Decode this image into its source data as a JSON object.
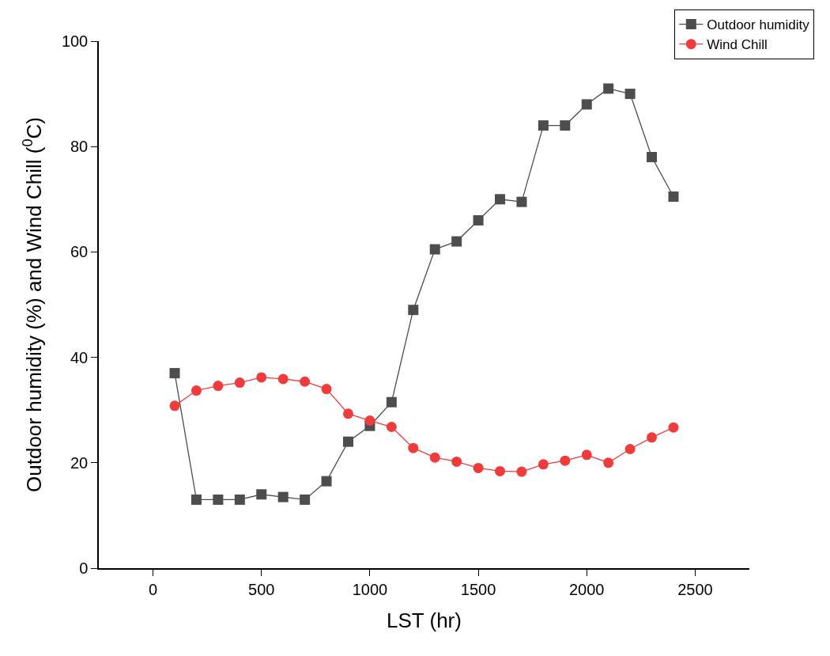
{
  "chart_data": {
    "type": "line",
    "xlabel": "LST (hr)",
    "ylabel": "Outdoor humidity (%) and Wind Chill ($^{0}$C)",
    "x": [
      100,
      200,
      300,
      400,
      500,
      600,
      700,
      800,
      900,
      1000,
      1100,
      1200,
      1300,
      1400,
      1500,
      1600,
      1700,
      1800,
      1900,
      2000,
      2100,
      2200,
      2300,
      2400
    ],
    "series": [
      {
        "name": "Outdoor humidity",
        "color": "#4d4d4d",
        "marker": "square",
        "values": [
          37,
          13,
          13,
          13,
          14,
          13.5,
          13,
          16.5,
          24,
          27,
          31.5,
          49,
          60.5,
          62,
          66,
          70,
          69.5,
          84,
          84,
          88,
          91,
          90,
          78,
          70.5
        ]
      },
      {
        "name": "Wind Chill",
        "color": "#ef3b3b",
        "marker": "circle",
        "values": [
          30.8,
          33.7,
          34.6,
          35.2,
          36.2,
          35.9,
          35.4,
          34,
          29.3,
          28,
          26.8,
          22.8,
          21,
          20.2,
          19,
          18.4,
          18.3,
          19.7,
          20.4,
          21.5,
          20,
          22.6,
          24.8,
          26.7
        ]
      }
    ],
    "xlim": [
      -250,
      2750
    ],
    "xticks": [
      0,
      500,
      1000,
      1500,
      2000,
      2500
    ],
    "ylim": [
      0,
      100
    ],
    "yticks": [
      0,
      20,
      40,
      60,
      80,
      100
    ],
    "grid": false,
    "legend": "top right",
    "line_style": "solid"
  }
}
